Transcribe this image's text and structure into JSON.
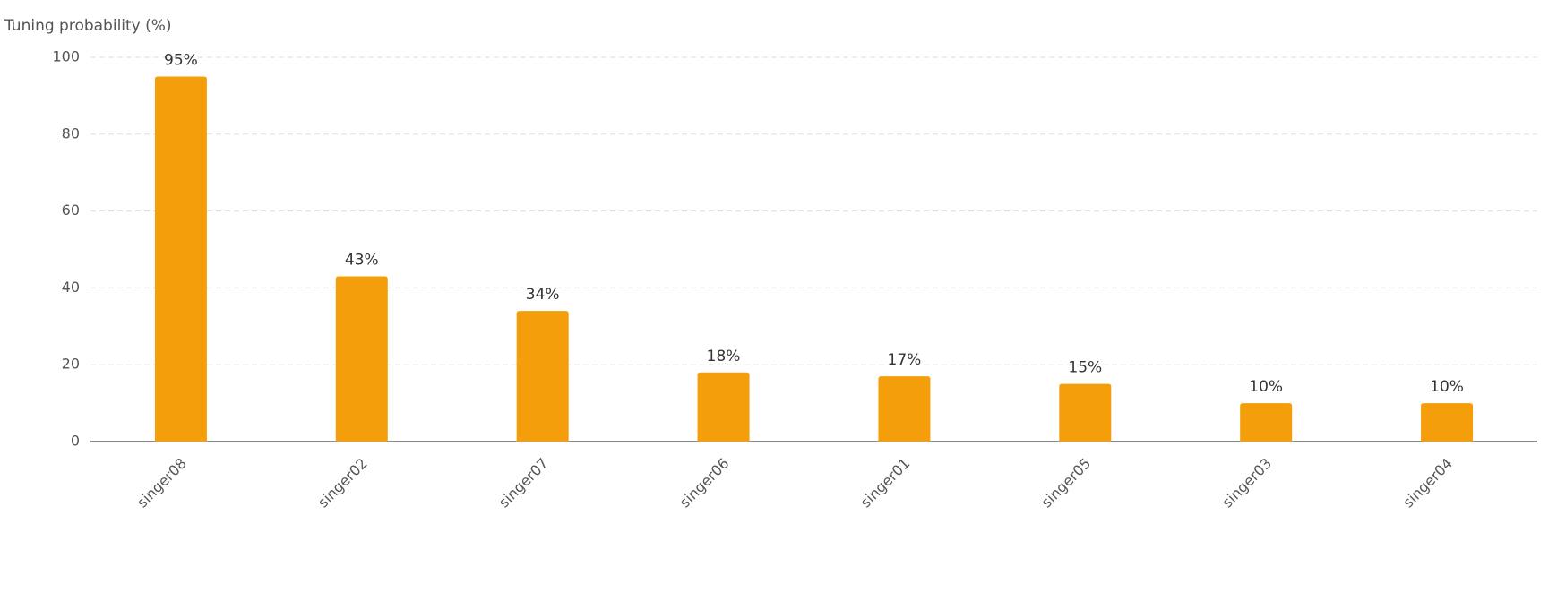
{
  "chart_data": {
    "type": "bar",
    "y_label": "Tuning probability (%)",
    "categories": [
      "singer08",
      "singer02",
      "singer07",
      "singer06",
      "singer01",
      "singer05",
      "singer03",
      "singer04"
    ],
    "values": [
      95,
      43,
      34,
      18,
      17,
      15,
      10,
      10
    ],
    "value_labels": [
      "95%",
      "43%",
      "34%",
      "18%",
      "17%",
      "15%",
      "10%",
      "10%"
    ],
    "color": "#f59e0b",
    "ylim": [
      0,
      100
    ],
    "yticks": [
      0,
      20,
      40,
      60,
      80,
      100
    ],
    "grid": true
  }
}
